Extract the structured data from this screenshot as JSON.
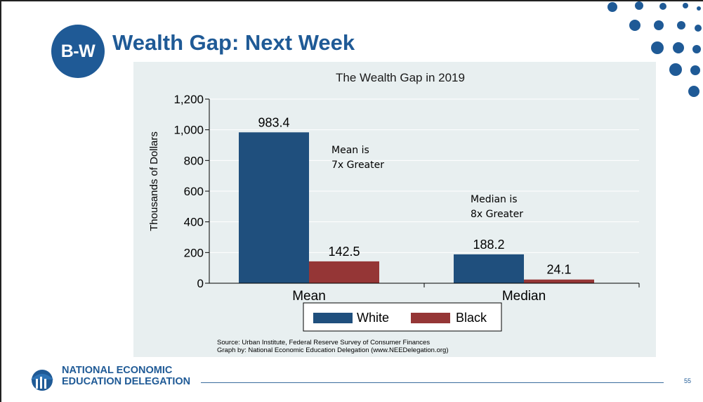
{
  "slide": {
    "badge_text": "B-W",
    "title": "Wealth Gap: Next Week",
    "page_number": "55",
    "org_line1": "NATIONAL ECONOMIC",
    "org_line2": "EDUCATION DELEGATION",
    "logo_icon": "columns-logo-icon",
    "colors": {
      "brand": "#1f5a96",
      "panel": "#e8eff0"
    }
  },
  "chart_data": {
    "type": "bar",
    "title": "The Wealth Gap in 2019",
    "ylabel": "Thousands of Dollars",
    "xlabel": "",
    "categories": [
      "Mean",
      "Median"
    ],
    "series": [
      {
        "name": "White",
        "values": [
          983.4,
          188.2
        ],
        "color": "#1f4f7d"
      },
      {
        "name": "Black",
        "values": [
          142.5,
          24.1
        ],
        "color": "#953636"
      }
    ],
    "data_labels": [
      [
        "983.4",
        "188.2"
      ],
      [
        "142.5",
        "24.1"
      ]
    ],
    "ylim": [
      0,
      1200
    ],
    "yticks": [
      0,
      200,
      400,
      600,
      800,
      1000,
      1200
    ],
    "ytick_labels": [
      "0",
      "200",
      "400",
      "600",
      "800",
      "1,000",
      "1,200"
    ],
    "grid": true,
    "legend_position": "bottom",
    "annotations": [
      {
        "lines": [
          "Mean is",
          "7x Greater"
        ]
      },
      {
        "lines": [
          "Median is",
          "8x Greater"
        ]
      }
    ],
    "source_lines": [
      "Source: Urban Institute, Federal Reserve Survey of Consumer Finances",
      "Graph by: National Economic Education Delegation (www.NEEDelegation.org)"
    ]
  }
}
